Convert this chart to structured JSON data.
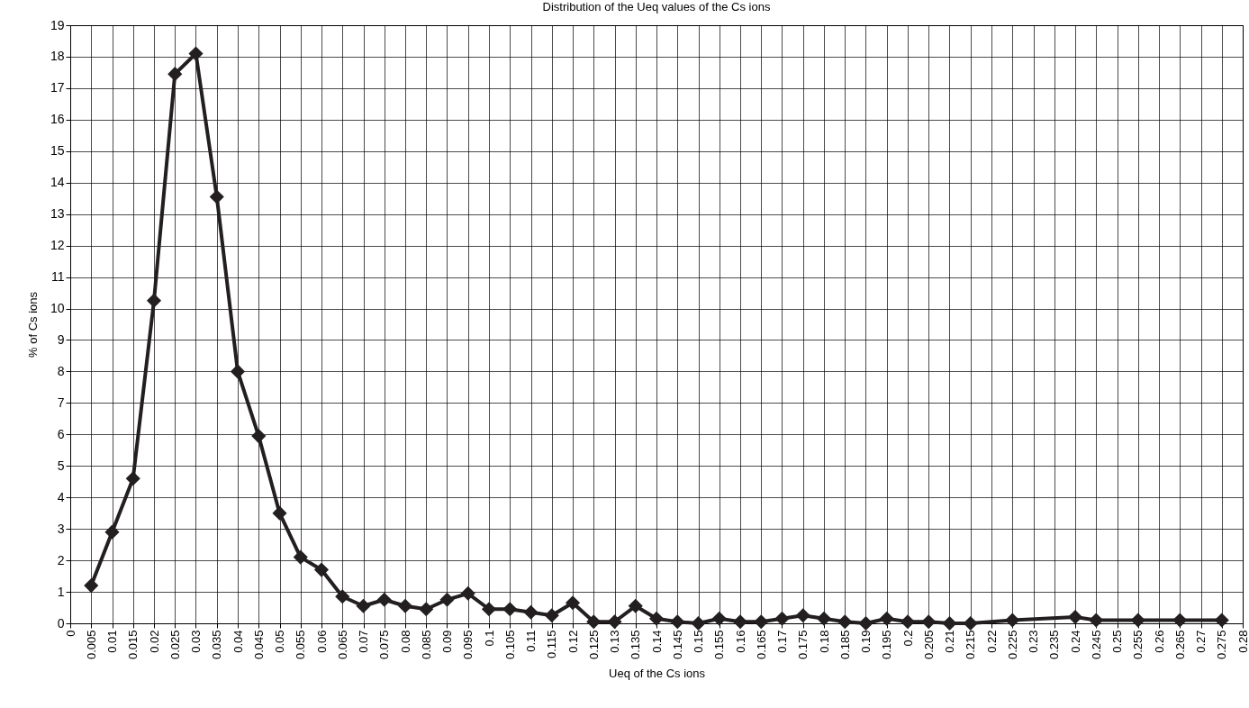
{
  "chart_data": {
    "type": "line",
    "title": "Distribution of the Ueq values of the Cs ions",
    "xlabel": "Ueq of the Cs ions",
    "ylabel": "% of Cs ions",
    "x": [
      0.005,
      0.01,
      0.015,
      0.02,
      0.025,
      0.03,
      0.035,
      0.04,
      0.045,
      0.05,
      0.055,
      0.06,
      0.065,
      0.07,
      0.075,
      0.08,
      0.085,
      0.09,
      0.095,
      0.1,
      0.105,
      0.11,
      0.115,
      0.12,
      0.125,
      0.13,
      0.135,
      0.14,
      0.145,
      0.15,
      0.155,
      0.16,
      0.165,
      0.17,
      0.175,
      0.18,
      0.185,
      0.19,
      0.195,
      0.2,
      0.205,
      0.21,
      0.215,
      0.225,
      0.24,
      0.245,
      0.255,
      0.265,
      0.275
    ],
    "series": [
      {
        "color": "#231f20",
        "values": [
          1.2,
          2.9,
          4.6,
          10.25,
          17.45,
          18.1,
          13.55,
          8.0,
          5.95,
          3.5,
          2.1,
          1.7,
          0.85,
          0.55,
          0.75,
          0.55,
          0.45,
          0.75,
          0.95,
          0.45,
          0.45,
          0.35,
          0.25,
          0.65,
          0.05,
          0.05,
          0.55,
          0.15,
          0.05,
          0.0,
          0.15,
          0.05,
          0.05,
          0.15,
          0.25,
          0.15,
          0.05,
          0.0,
          0.15,
          0.05,
          0.05,
          0.0,
          0.0,
          0.1,
          0.2,
          0.1,
          0.1,
          0.1,
          0.1
        ]
      }
    ],
    "xlim": [
      0,
      0.28
    ],
    "xticks": [
      0,
      0.005,
      0.01,
      0.015,
      0.02,
      0.025,
      0.03,
      0.035,
      0.04,
      0.045,
      0.05,
      0.055,
      0.06,
      0.065,
      0.07,
      0.075,
      0.08,
      0.085,
      0.09,
      0.095,
      0.1,
      0.105,
      0.11,
      0.115,
      0.12,
      0.125,
      0.13,
      0.135,
      0.14,
      0.145,
      0.15,
      0.155,
      0.16,
      0.165,
      0.17,
      0.175,
      0.18,
      0.185,
      0.19,
      0.195,
      0.2,
      0.205,
      0.21,
      0.215,
      0.22,
      0.225,
      0.23,
      0.235,
      0.24,
      0.245,
      0.25,
      0.255,
      0.26,
      0.265,
      0.27,
      0.275,
      0.28
    ],
    "ylim": [
      0,
      19
    ],
    "yticks": [
      0,
      1,
      2,
      3,
      4,
      5,
      6,
      7,
      8,
      9,
      10,
      11,
      12,
      13,
      14,
      15,
      16,
      17,
      18,
      19
    ],
    "grid": true,
    "marker": "diamond",
    "line_style": "solid"
  }
}
